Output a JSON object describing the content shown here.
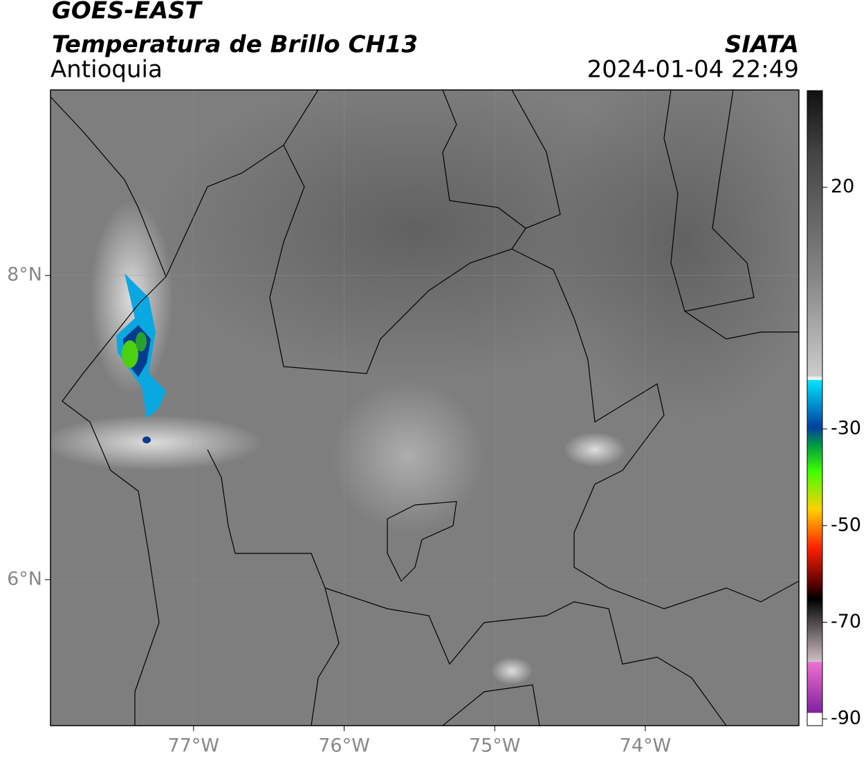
{
  "header": {
    "satellite": "GOES-EAST",
    "product": "Temperatura de Brillo CH13",
    "region": "Antioquia",
    "source": "SIATA",
    "datetime": "2024-01-04 22:49"
  },
  "map": {
    "xlim": [
      -77.95,
      -72.98
    ],
    "ylim": [
      5.04,
      9.22
    ],
    "xticks": [
      {
        "value": -77,
        "label": "77°W"
      },
      {
        "value": -76,
        "label": "76°W"
      },
      {
        "value": -75,
        "label": "75°W"
      },
      {
        "value": -74,
        "label": "74°W"
      }
    ],
    "yticks": [
      {
        "value": 6,
        "label": "6°N"
      },
      {
        "value": 8,
        "label": "8°N"
      }
    ]
  },
  "colorbar": {
    "lim": [
      -91.4,
      40
    ],
    "ticks": [
      20,
      -30,
      -50,
      -70,
      -90
    ]
  }
}
